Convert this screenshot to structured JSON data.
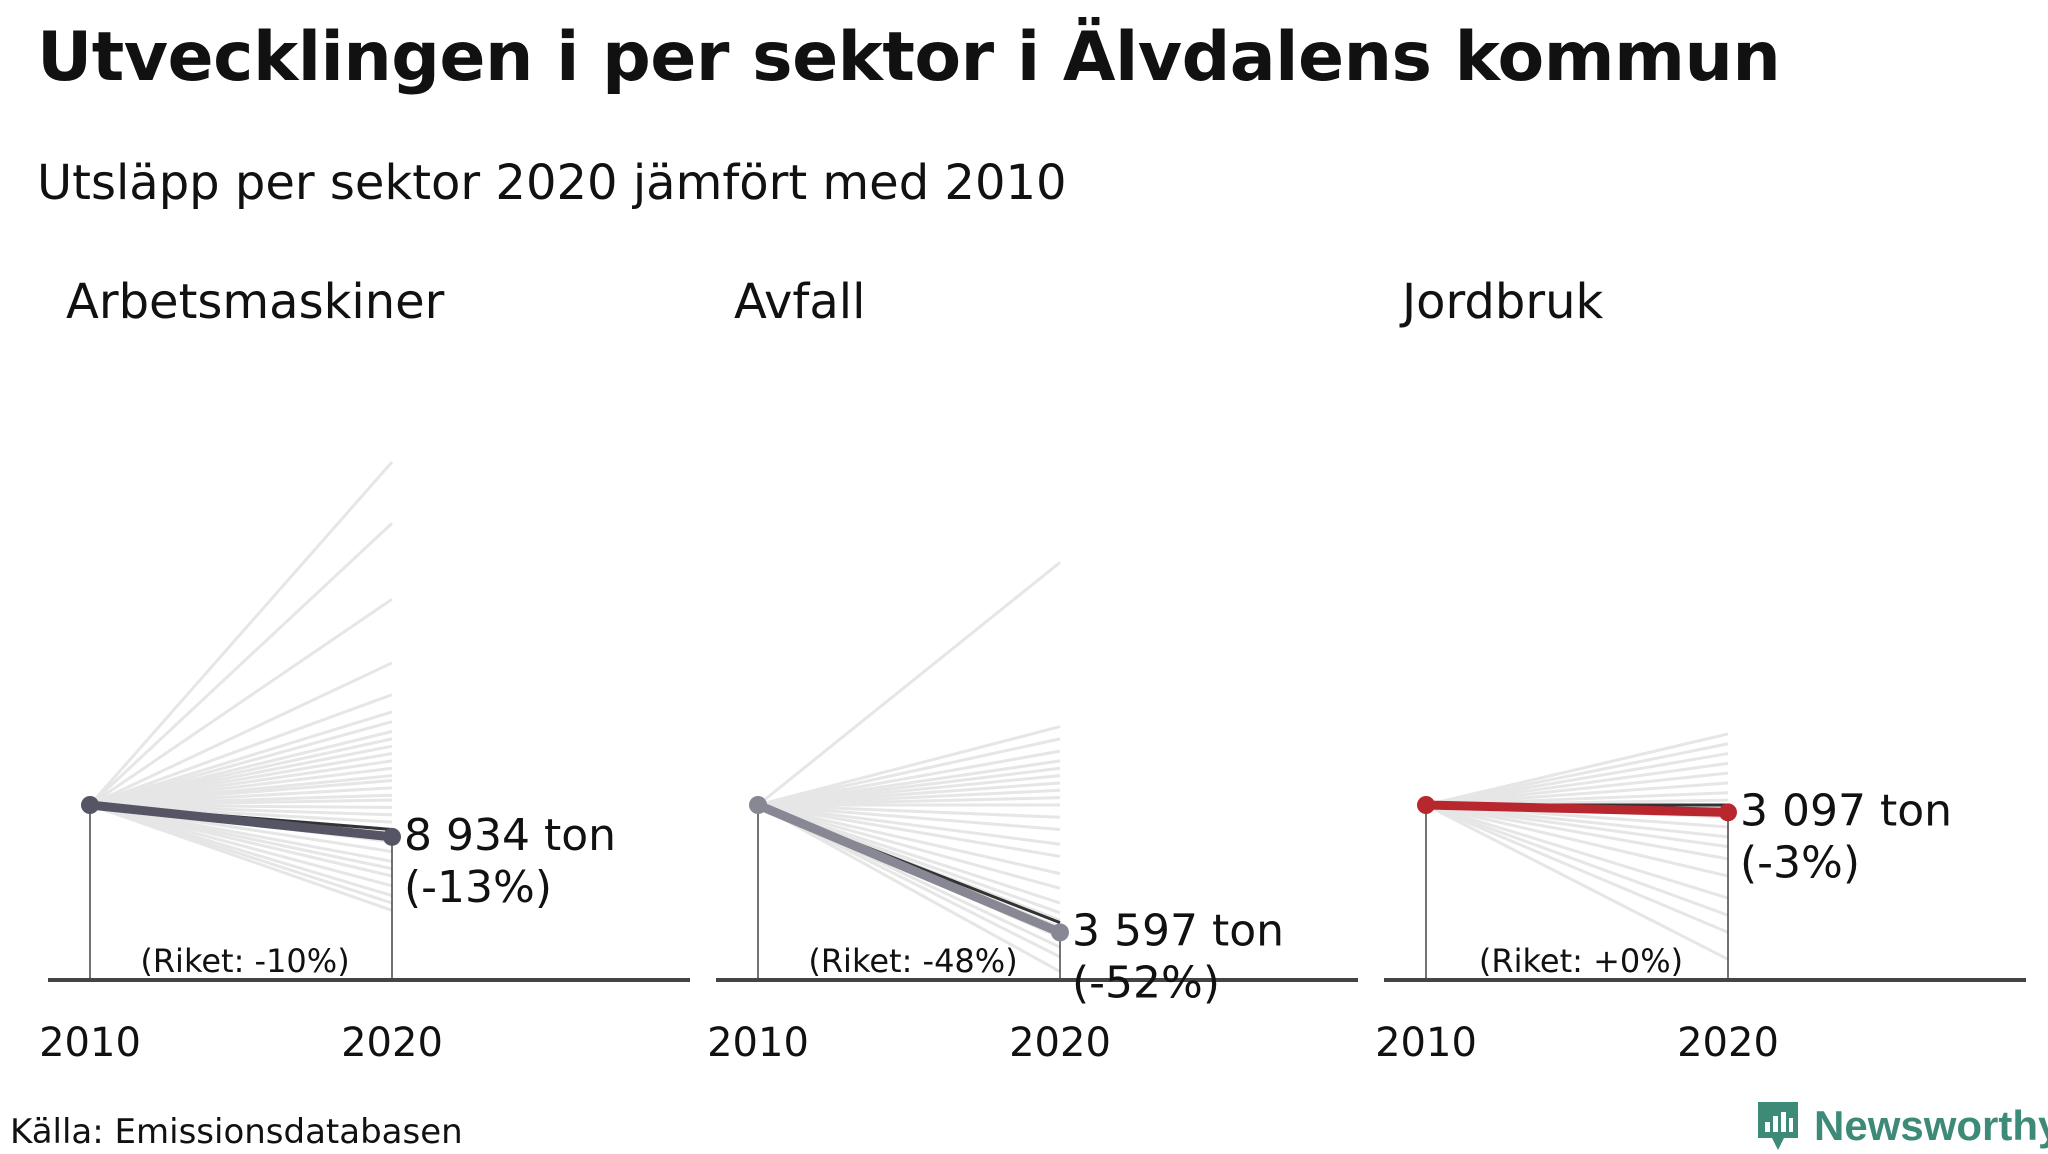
{
  "title": "Utvecklingen i per sektor i Älvdalens kommun",
  "subtitle": "Utsläpp per sektor 2020 jämfört med 2010",
  "source": "Källa: Emissionsdatabasen",
  "brand": "Newsworthy",
  "chart_data": [
    {
      "type": "line",
      "title": "Arbetsmaskiner",
      "x": [
        "2010",
        "2020"
      ],
      "color": "#555566",
      "value_label": "8 934 ton",
      "change_label": "(-13%)",
      "national_label": "(Riket: -10%)",
      "ylim": [
        0,
        2.0
      ],
      "municipality_index": [
        1.0,
        0.87
      ],
      "national_index": [
        1.0,
        0.9
      ],
      "background_index_2020": [
        2.4,
        2.15,
        1.84,
        1.58,
        1.45,
        1.38,
        1.34,
        1.3,
        1.27,
        1.24,
        1.21,
        1.18,
        1.15,
        1.12,
        1.1,
        1.07,
        1.04,
        1.02,
        0.99,
        0.96,
        0.93,
        0.9,
        0.85,
        0.81,
        0.77,
        0.74,
        0.71,
        0.67,
        0.63,
        0.6,
        0.57
      ]
    },
    {
      "type": "line",
      "title": "Avfall",
      "x": [
        "2010",
        "2020"
      ],
      "color": "#888895",
      "value_label": "3 597 ton",
      "change_label": "(-52%)",
      "national_label": "(Riket: -48%)",
      "ylim": [
        0,
        2.0
      ],
      "municipality_index": [
        1.0,
        0.48
      ],
      "national_index": [
        1.0,
        0.52
      ],
      "background_index_2020": [
        1.99,
        1.32,
        1.27,
        1.22,
        1.18,
        1.15,
        1.12,
        1.09,
        1.06,
        1.03,
        1.0,
        0.95,
        0.9,
        0.84,
        0.79,
        0.72,
        0.66,
        0.6,
        0.56,
        0.53,
        0.5,
        0.46,
        0.42,
        0.38,
        0.32
      ]
    },
    {
      "type": "line",
      "title": "Jordbruk",
      "x": [
        "2010",
        "2020"
      ],
      "color": "#b8262e",
      "value_label": "3 097 ton",
      "change_label": "(-3%)",
      "national_label": "(Riket: +0%)",
      "ylim": [
        0,
        2.0
      ],
      "municipality_index": [
        1.0,
        0.97
      ],
      "national_index": [
        1.0,
        1.0
      ],
      "background_index_2020": [
        1.29,
        1.25,
        1.21,
        1.17,
        1.13,
        1.09,
        1.05,
        1.02,
        0.99,
        0.95,
        0.91,
        0.87,
        0.83,
        0.78,
        0.71,
        0.62,
        0.55,
        0.48,
        0.37
      ]
    }
  ]
}
